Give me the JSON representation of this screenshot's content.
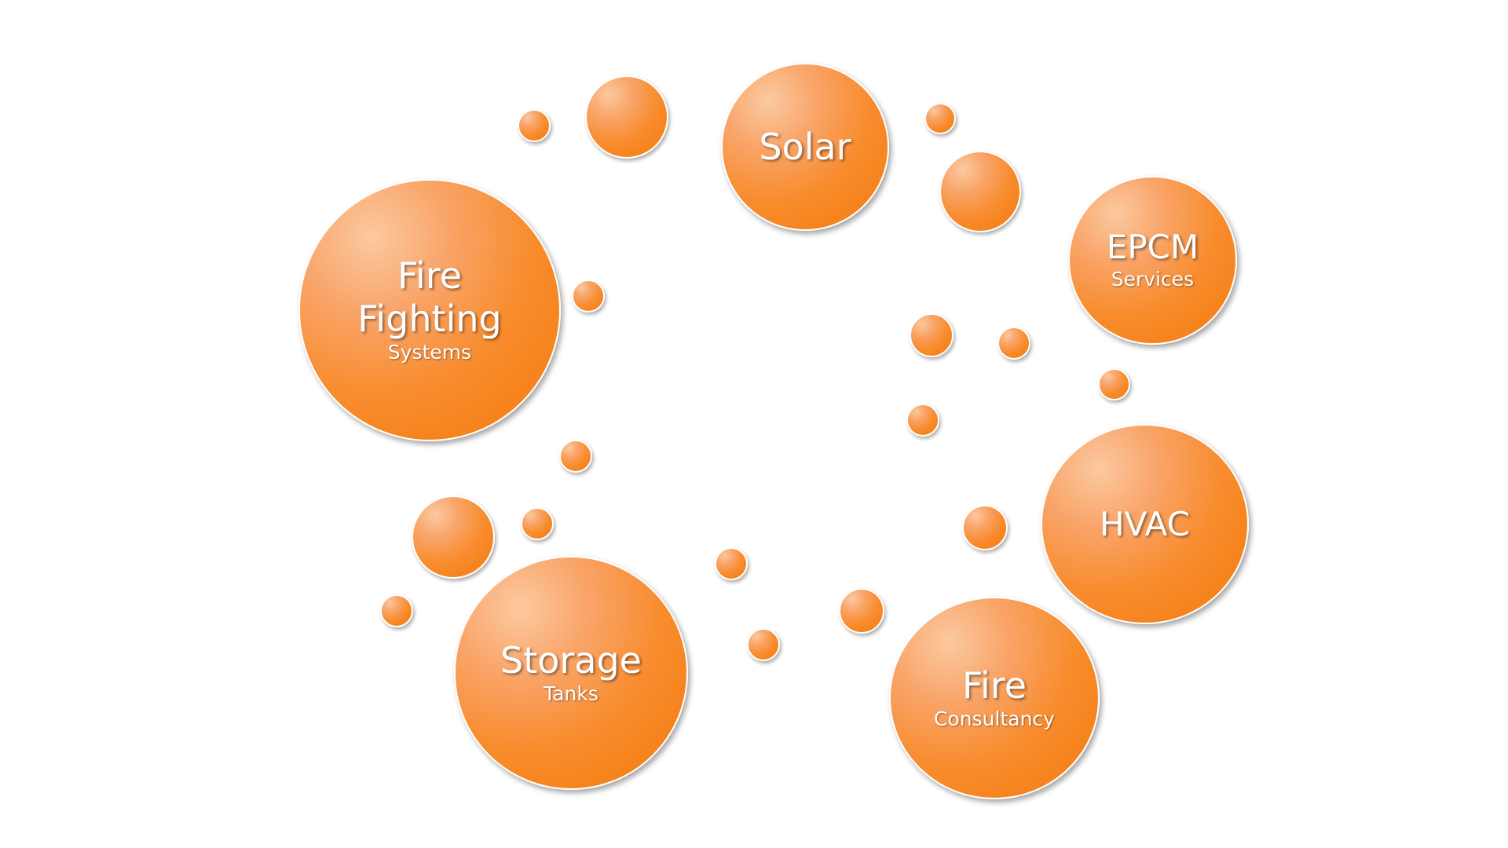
{
  "bubbles": {
    "solar": {
      "title": "Solar"
    },
    "epcm": {
      "title": "EPCM",
      "subtitle": "Services"
    },
    "fire_fighting": {
      "title": "Fire Fighting",
      "subtitle": "Systems"
    },
    "hvac": {
      "title": "HVAC"
    },
    "storage": {
      "title": "Storage",
      "subtitle": "Tanks"
    },
    "fire_consultancy": {
      "title": "Fire",
      "subtitle": "Consultancy"
    }
  },
  "colors": {
    "bubble_orange": "#f47a0b",
    "bubble_highlight": "#fbc9a0",
    "text": "#ffffff",
    "background": "#ffffff"
  }
}
